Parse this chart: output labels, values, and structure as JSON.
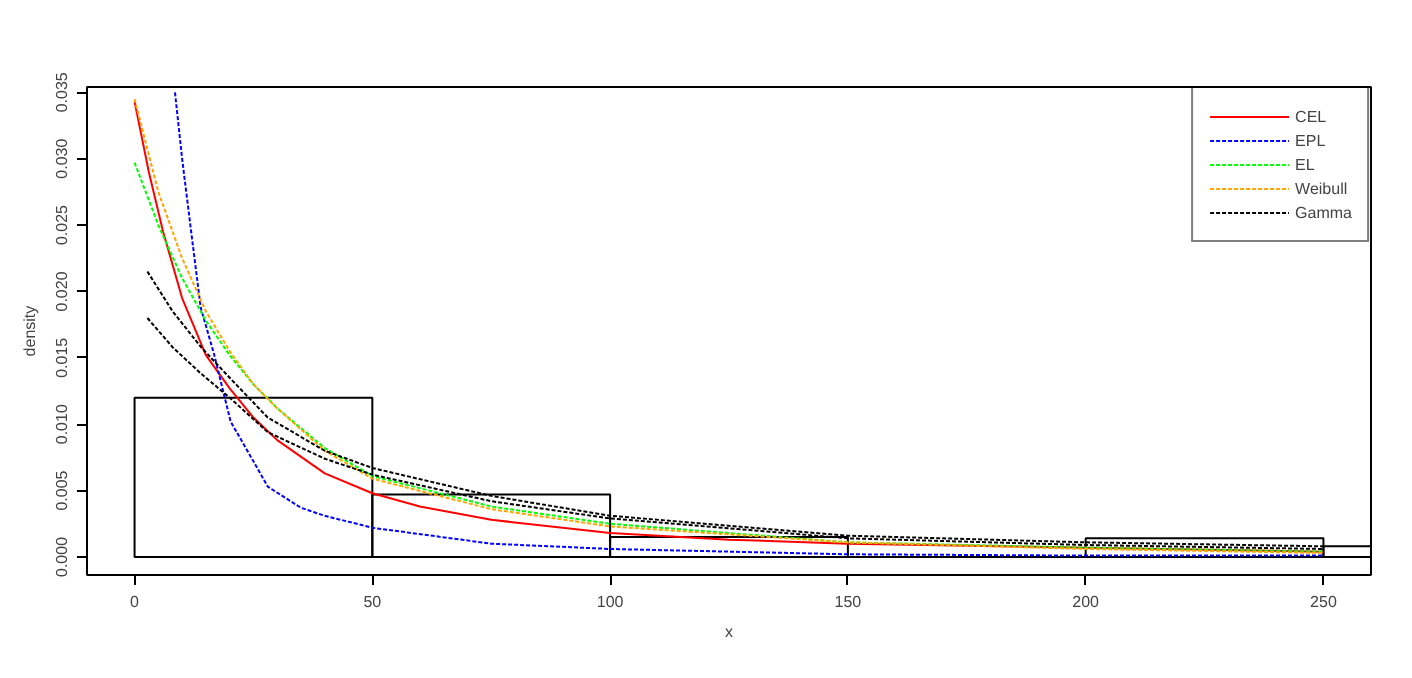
{
  "chart_data": {
    "type": "histogram",
    "xlabel": "x",
    "ylabel": "density",
    "bins": [
      0,
      50,
      100,
      150,
      200,
      250,
      300
    ],
    "values": [
      0.012,
      0.0047,
      0.0015,
      0,
      0.0014,
      0.0008
    ],
    "color": "#000000",
    "xlim": [
      -10,
      260
    ],
    "ylim": [
      -0.00136,
      0.0354
    ],
    "xticks": [
      0,
      50,
      100,
      150,
      200,
      250
    ],
    "yticks": [
      {
        "value": 0,
        "label": "0.000"
      },
      {
        "value": 0.005,
        "label": "0.005"
      },
      {
        "value": 0.01,
        "label": "0.010"
      },
      {
        "value": 0.015,
        "label": "0.015"
      },
      {
        "value": 0.02,
        "label": "0.020"
      },
      {
        "value": 0.025,
        "label": "0.025"
      },
      {
        "value": 0.03,
        "label": "0.030"
      },
      {
        "value": 0.035,
        "label": "0.035"
      }
    ],
    "legend": "top right",
    "grid": false,
    "series": [
      {
        "type": "line",
        "name": "CEL",
        "color": "#ff0000",
        "line_style": "solid",
        "x": [
          0,
          3,
          6,
          10,
          15,
          20,
          25,
          30,
          40,
          50,
          60,
          75,
          100,
          125,
          150,
          200,
          250
        ],
        "values": [
          0.0343,
          0.029,
          0.0245,
          0.0195,
          0.0152,
          0.0127,
          0.0105,
          0.0088,
          0.0063,
          0.0048,
          0.0038,
          0.0028,
          0.0018,
          0.0013,
          0.001,
          0.0007,
          0.0004
        ]
      },
      {
        "type": "line",
        "name": "EPL",
        "color": "#0000ff",
        "line_style": "dashed",
        "x": [
          8.5,
          10,
          11.8,
          13.9,
          16.7,
          20.2,
          25,
          28,
          35,
          40,
          50,
          75,
          100,
          150,
          200,
          250
        ],
        "values": [
          0.035,
          0.03,
          0.0248,
          0.0188,
          0.0153,
          0.0102,
          0.0072,
          0.0053,
          0.0037,
          0.0031,
          0.0022,
          0.001,
          0.0006,
          0.0002,
          0.0001,
          0.0001
        ]
      },
      {
        "type": "line",
        "name": "EL",
        "color": "#00ff00",
        "line_style": "dashed",
        "x": [
          0,
          5,
          10,
          15,
          20,
          25,
          30,
          40,
          50,
          75,
          100,
          150,
          200,
          250
        ],
        "values": [
          0.0297,
          0.025,
          0.021,
          0.0178,
          0.0152,
          0.013,
          0.0112,
          0.0082,
          0.0061,
          0.0038,
          0.0025,
          0.0011,
          0.0007,
          0.0004
        ]
      },
      {
        "type": "line",
        "name": "Weibull",
        "color": "#ffa500",
        "line_style": "dashed",
        "x": [
          0,
          5,
          10,
          15,
          20,
          25,
          30,
          40,
          50,
          75,
          100,
          150,
          200,
          250
        ],
        "values": [
          0.0345,
          0.0275,
          0.0225,
          0.0185,
          0.0155,
          0.013,
          0.0112,
          0.008,
          0.0059,
          0.0036,
          0.0023,
          0.0011,
          0.0006,
          0.0003
        ]
      },
      {
        "type": "line",
        "name": "Gamma",
        "color": "#000000",
        "line_style": "dashed",
        "x": [
          2.7,
          8,
          14,
          20,
          28,
          40,
          50,
          75,
          100,
          150,
          200,
          250
        ],
        "values": [
          0.0215,
          0.0185,
          0.0158,
          0.0135,
          0.0105,
          0.008,
          0.0067,
          0.0046,
          0.0031,
          0.0016,
          0.0011,
          0.0008
        ]
      },
      {
        "type": "line",
        "color": "#000000",
        "line_style": "dashed",
        "x": [
          2.7,
          8,
          14,
          20,
          28,
          40,
          50,
          75,
          100,
          150,
          200,
          250
        ],
        "values": [
          0.018,
          0.0158,
          0.0138,
          0.012,
          0.0094,
          0.0074,
          0.0062,
          0.0042,
          0.0029,
          0.0014,
          0.0009,
          0.0006
        ]
      }
    ]
  }
}
